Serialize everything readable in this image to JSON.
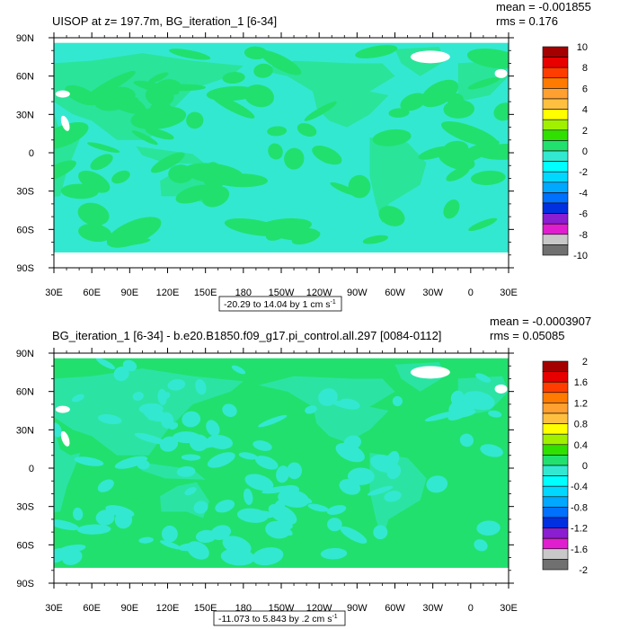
{
  "panels": [
    {
      "title": "UISOP at z= 197.7m, BG_iteration_1 [6-34]",
      "stats": [
        "mean = -0.001855",
        "rms = 0.176"
      ],
      "range_label": "-20.29 to 14.04 by 1 cm s",
      "range_unit_sup": "-1"
    },
    {
      "title": "BG_iteration_1 [6-34] - b.e20.B1850.f09_g17.pi_control.all.297 [0084-0112]",
      "stats": [
        "mean = -0.0003907",
        "rms = 0.05085"
      ],
      "range_label": "-11.073 to 5.843 by .2 cm s",
      "range_unit_sup": "-1"
    }
  ],
  "colors": {
    "frame": "#000000",
    "no_data": "#ffffff",
    "ocean_near_zero_positive": "#22e06e",
    "ocean_near_zero_negative": "#33e8d0"
  },
  "chart_data": [
    {
      "type": "heatmap",
      "title": "UISOP at z= 197.7m, BG_iteration_1 [6-34]",
      "x_tick_labels": [
        "30E",
        "60E",
        "90E",
        "120E",
        "150E",
        "180",
        "150W",
        "120W",
        "90W",
        "60W",
        "30W",
        "0",
        "30E"
      ],
      "y_tick_labels": [
        "90N",
        "60N",
        "30N",
        "0",
        "30S",
        "60S",
        "90S"
      ],
      "xlim": [
        30,
        390
      ],
      "ylim": [
        -90,
        90
      ],
      "colorbar": {
        "labels": [
          "10",
          "8",
          "6",
          "4",
          "2",
          "0",
          "-2",
          "-4",
          "-6",
          "-8",
          "-10"
        ],
        "colors": [
          "#a50000",
          "#e80000",
          "#ff3d00",
          "#ff7a00",
          "#ffa030",
          "#ffc040",
          "#ffff00",
          "#a0f000",
          "#30e000",
          "#22e06e",
          "#33e8d0",
          "#00ffff",
          "#00d8ff",
          "#00a8ff",
          "#0070ff",
          "#0030e0",
          "#8a1ed0",
          "#e01ecf",
          "#c8c8c8",
          "#707070"
        ]
      },
      "dominant_classes": [
        "0 to 1",
        "-1 to 0"
      ],
      "stats": {
        "mean": -0.001855,
        "rms": 0.176
      },
      "range_label": "-20.29 to 14.04 by 1 cm s-1"
    },
    {
      "type": "heatmap",
      "title": "BG_iteration_1 [6-34] - b.e20.B1850.f09_g17.pi_control.all.297 [0084-0112]",
      "x_tick_labels": [
        "30E",
        "60E",
        "90E",
        "120E",
        "150E",
        "180",
        "150W",
        "120W",
        "90W",
        "60W",
        "30W",
        "0",
        "30E"
      ],
      "y_tick_labels": [
        "90N",
        "60N",
        "30N",
        "0",
        "30S",
        "60S",
        "90S"
      ],
      "xlim": [
        30,
        390
      ],
      "ylim": [
        -90,
        90
      ],
      "colorbar": {
        "labels": [
          "2",
          "1.6",
          "1.2",
          "0.8",
          "0.4",
          "0",
          "-0.4",
          "-0.8",
          "-1.2",
          "-1.6",
          "-2"
        ],
        "colors": [
          "#a50000",
          "#e80000",
          "#ff3d00",
          "#ff7a00",
          "#ffa030",
          "#ffc040",
          "#ffff00",
          "#a0f000",
          "#30e000",
          "#22e06e",
          "#33e8d0",
          "#00ffff",
          "#00d8ff",
          "#00a8ff",
          "#0070ff",
          "#0030e0",
          "#8a1ed0",
          "#e01ecf",
          "#c8c8c8",
          "#707070"
        ]
      },
      "dominant_classes": [
        "0 to 0.2",
        "-0.2 to 0"
      ],
      "stats": {
        "mean": -0.0003907,
        "rms": 0.05085
      },
      "range_label": "-11.073 to 5.843 by .2 cm s-1"
    }
  ]
}
